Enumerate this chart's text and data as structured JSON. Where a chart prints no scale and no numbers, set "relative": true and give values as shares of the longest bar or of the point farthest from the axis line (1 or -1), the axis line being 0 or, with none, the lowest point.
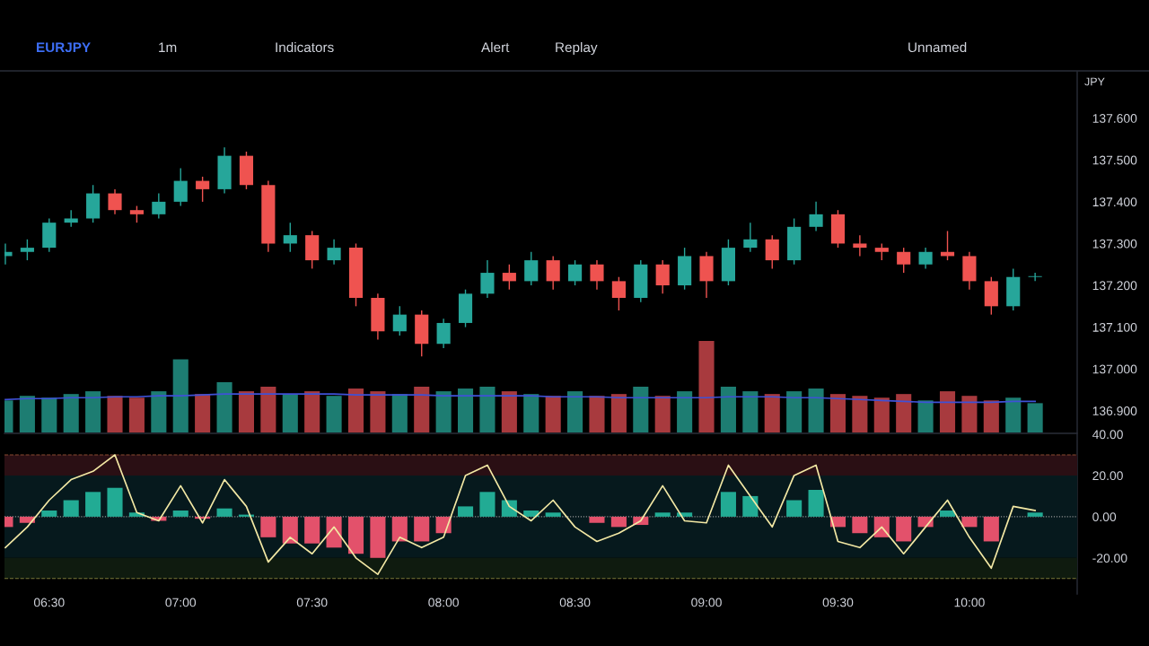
{
  "chart_data": [
    {
      "type": "candlestick",
      "title": "EURJPY",
      "subtitle": "1m",
      "annotations": [
        "Indicators",
        "Alert",
        "Replay",
        "Unnamed",
        "JPY"
      ],
      "x": [
        6.3333,
        6.4167,
        6.5,
        6.5833,
        6.6667,
        6.75,
        6.8333,
        6.9167,
        7.0,
        7.0833,
        7.1667,
        7.25,
        7.3333,
        7.4167,
        7.5,
        7.5833,
        7.6667,
        7.75,
        7.8333,
        7.9167,
        8.0,
        8.0833,
        8.1667,
        8.25,
        8.3333,
        8.4167,
        8.5,
        8.5833,
        8.6667,
        8.75,
        8.8333,
        8.9167,
        9.0,
        9.0833,
        9.1667,
        9.25,
        9.3333,
        9.4167,
        9.5,
        9.5833,
        9.6667,
        9.75,
        9.8333,
        9.9167,
        10.0,
        10.0833,
        10.1667,
        10.25
      ],
      "ohlc": [
        [
          137.27,
          137.3,
          137.25,
          137.28
        ],
        [
          137.28,
          137.31,
          137.26,
          137.29
        ],
        [
          137.29,
          137.36,
          137.28,
          137.35
        ],
        [
          137.35,
          137.38,
          137.34,
          137.36
        ],
        [
          137.36,
          137.44,
          137.35,
          137.42
        ],
        [
          137.42,
          137.43,
          137.37,
          137.38
        ],
        [
          137.38,
          137.39,
          137.35,
          137.37
        ],
        [
          137.37,
          137.42,
          137.36,
          137.4
        ],
        [
          137.4,
          137.48,
          137.39,
          137.45
        ],
        [
          137.45,
          137.46,
          137.4,
          137.43
        ],
        [
          137.43,
          137.53,
          137.42,
          137.51
        ],
        [
          137.51,
          137.52,
          137.43,
          137.44
        ],
        [
          137.44,
          137.45,
          137.28,
          137.3
        ],
        [
          137.3,
          137.35,
          137.28,
          137.32
        ],
        [
          137.32,
          137.33,
          137.24,
          137.26
        ],
        [
          137.26,
          137.31,
          137.25,
          137.29
        ],
        [
          137.29,
          137.3,
          137.15,
          137.17
        ],
        [
          137.17,
          137.18,
          137.07,
          137.09
        ],
        [
          137.09,
          137.15,
          137.08,
          137.13
        ],
        [
          137.13,
          137.14,
          137.03,
          137.06
        ],
        [
          137.06,
          137.12,
          137.05,
          137.11
        ],
        [
          137.11,
          137.19,
          137.1,
          137.18
        ],
        [
          137.18,
          137.26,
          137.17,
          137.23
        ],
        [
          137.23,
          137.25,
          137.19,
          137.21
        ],
        [
          137.21,
          137.28,
          137.2,
          137.26
        ],
        [
          137.26,
          137.27,
          137.19,
          137.21
        ],
        [
          137.21,
          137.26,
          137.2,
          137.25
        ],
        [
          137.25,
          137.26,
          137.19,
          137.21
        ],
        [
          137.21,
          137.22,
          137.14,
          137.17
        ],
        [
          137.17,
          137.26,
          137.16,
          137.25
        ],
        [
          137.25,
          137.26,
          137.18,
          137.2
        ],
        [
          137.2,
          137.29,
          137.19,
          137.27
        ],
        [
          137.27,
          137.28,
          137.17,
          137.21
        ],
        [
          137.21,
          137.31,
          137.2,
          137.29
        ],
        [
          137.29,
          137.35,
          137.28,
          137.31
        ],
        [
          137.31,
          137.32,
          137.24,
          137.26
        ],
        [
          137.26,
          137.36,
          137.25,
          137.34
        ],
        [
          137.34,
          137.4,
          137.33,
          137.37
        ],
        [
          137.37,
          137.38,
          137.29,
          137.3
        ],
        [
          137.3,
          137.32,
          137.27,
          137.29
        ],
        [
          137.29,
          137.3,
          137.26,
          137.28
        ],
        [
          137.28,
          137.29,
          137.23,
          137.25
        ],
        [
          137.25,
          137.29,
          137.24,
          137.28
        ],
        [
          137.28,
          137.33,
          137.26,
          137.27
        ],
        [
          137.27,
          137.28,
          137.19,
          137.21
        ],
        [
          137.21,
          137.22,
          137.13,
          137.15
        ],
        [
          137.15,
          137.24,
          137.14,
          137.22
        ],
        [
          137.22,
          137.23,
          137.21,
          137.22
        ]
      ],
      "colors": [
        "#26a69a",
        "#26a69a",
        "#26a69a",
        "#26a69a",
        "#26a69a",
        "#ef5350",
        "#ef5350",
        "#26a69a",
        "#26a69a",
        "#ef5350",
        "#26a69a",
        "#ef5350",
        "#ef5350",
        "#26a69a",
        "#ef5350",
        "#26a69a",
        "#ef5350",
        "#ef5350",
        "#26a69a",
        "#ef5350",
        "#26a69a",
        "#26a69a",
        "#26a69a",
        "#ef5350",
        "#26a69a",
        "#ef5350",
        "#26a69a",
        "#ef5350",
        "#ef5350",
        "#26a69a",
        "#ef5350",
        "#26a69a",
        "#ef5350",
        "#26a69a",
        "#26a69a",
        "#ef5350",
        "#26a69a",
        "#26a69a",
        "#ef5350",
        "#ef5350",
        "#ef5350",
        "#ef5350",
        "#26a69a",
        "#ef5350",
        "#ef5350",
        "#ef5350",
        "#26a69a",
        "#26a69a"
      ],
      "xlim": [
        6.33,
        10.41
      ],
      "ylim": [
        136.848,
        137.711
      ],
      "yticks": [
        {
          "value": 136.9,
          "label": "136.900"
        },
        {
          "value": 137.0,
          "label": "137.000"
        },
        {
          "value": 137.1,
          "label": "137.100"
        },
        {
          "value": 137.2,
          "label": "137.200"
        },
        {
          "value": 137.3,
          "label": "137.300"
        },
        {
          "value": 137.4,
          "label": "137.400"
        },
        {
          "value": 137.5,
          "label": "137.500"
        },
        {
          "value": 137.6,
          "label": "137.600"
        }
      ],
      "tick_labels": "y"
    },
    {
      "type": "bar",
      "relative": true,
      "tick_labels": false,
      "x": [
        6.3333,
        6.4167,
        6.5,
        6.5833,
        6.6667,
        6.75,
        6.8333,
        6.9167,
        7.0,
        7.0833,
        7.1667,
        7.25,
        7.3333,
        7.4167,
        7.5,
        7.5833,
        7.6667,
        7.75,
        7.8333,
        7.9167,
        8.0,
        8.0833,
        8.1667,
        8.25,
        8.3333,
        8.4167,
        8.5,
        8.5833,
        8.6667,
        8.75,
        8.8333,
        8.9167,
        9.0,
        9.0833,
        9.1667,
        9.25,
        9.3333,
        9.4167,
        9.5,
        9.5833,
        9.6667,
        9.75,
        9.8333,
        9.9167,
        10.0,
        10.0833,
        10.1667,
        10.25
      ],
      "xlim": [
        6.33,
        10.41
      ],
      "series": [
        {
          "type": "bar",
          "colors": [
            "#1d7d72",
            "#1d7d72",
            "#1d7d72",
            "#1d7d72",
            "#1d7d72",
            "#a83a3e",
            "#a83a3e",
            "#1d7d72",
            "#1d7d72",
            "#a83a3e",
            "#1d7d72",
            "#a83a3e",
            "#a83a3e",
            "#1d7d72",
            "#a83a3e",
            "#1d7d72",
            "#a83a3e",
            "#a83a3e",
            "#1d7d72",
            "#a83a3e",
            "#1d7d72",
            "#1d7d72",
            "#1d7d72",
            "#a83a3e",
            "#1d7d72",
            "#a83a3e",
            "#1d7d72",
            "#a83a3e",
            "#a83a3e",
            "#1d7d72",
            "#a83a3e",
            "#1d7d72",
            "#a83a3e",
            "#1d7d72",
            "#1d7d72",
            "#a83a3e",
            "#1d7d72",
            "#1d7d72",
            "#a83a3e",
            "#a83a3e",
            "#a83a3e",
            "#a83a3e",
            "#1d7d72",
            "#a83a3e",
            "#a83a3e",
            "#a83a3e",
            "#1d7d72",
            "#1d7d72"
          ],
          "values": [
            0.35,
            0.4,
            0.38,
            0.42,
            0.45,
            0.4,
            0.38,
            0.45,
            0.8,
            0.42,
            0.55,
            0.45,
            0.5,
            0.42,
            0.45,
            0.4,
            0.48,
            0.45,
            0.42,
            0.5,
            0.45,
            0.48,
            0.5,
            0.45,
            0.42,
            0.4,
            0.45,
            0.4,
            0.42,
            0.5,
            0.4,
            0.45,
            1.0,
            0.5,
            0.45,
            0.42,
            0.45,
            0.48,
            0.42,
            0.4,
            0.38,
            0.42,
            0.35,
            0.45,
            0.4,
            0.35,
            0.38,
            0.32
          ]
        },
        {
          "type": "line",
          "color": "#3f51d6",
          "values": [
            0.36,
            0.37,
            0.37,
            0.38,
            0.38,
            0.39,
            0.39,
            0.4,
            0.4,
            0.41,
            0.42,
            0.42,
            0.42,
            0.42,
            0.42,
            0.42,
            0.41,
            0.41,
            0.41,
            0.41,
            0.4,
            0.4,
            0.4,
            0.4,
            0.4,
            0.39,
            0.39,
            0.39,
            0.38,
            0.38,
            0.38,
            0.38,
            0.38,
            0.39,
            0.39,
            0.39,
            0.38,
            0.38,
            0.37,
            0.36,
            0.35,
            0.34,
            0.33,
            0.33,
            0.33,
            0.33,
            0.34,
            0.34
          ]
        }
      ]
    },
    {
      "type": "bar",
      "x": [
        6.3333,
        6.4167,
        6.5,
        6.5833,
        6.6667,
        6.75,
        6.8333,
        6.9167,
        7.0,
        7.0833,
        7.1667,
        7.25,
        7.3333,
        7.4167,
        7.5,
        7.5833,
        7.6667,
        7.75,
        7.8333,
        7.9167,
        8.0,
        8.0833,
        8.1667,
        8.25,
        8.3333,
        8.4167,
        8.5,
        8.5833,
        8.6667,
        8.75,
        8.8333,
        8.9167,
        9.0,
        9.0833,
        9.1667,
        9.25,
        9.3333,
        9.4167,
        9.5,
        9.5833,
        9.6667,
        9.75,
        9.8333,
        9.9167,
        10.0,
        10.0833,
        10.1667,
        10.25
      ],
      "series": [
        {
          "type": "bar",
          "colors": [
            "#e3516b",
            "#e3516b",
            "#22ab94",
            "#22ab94",
            "#22ab94",
            "#22ab94",
            "#22ab94",
            "#e3516b",
            "#22ab94",
            "#e3516b",
            "#22ab94",
            "#22ab94",
            "#e3516b",
            "#e3516b",
            "#e3516b",
            "#e3516b",
            "#e3516b",
            "#e3516b",
            "#e3516b",
            "#e3516b",
            "#e3516b",
            "#22ab94",
            "#22ab94",
            "#22ab94",
            "#22ab94",
            "#22ab94",
            "#22ab94",
            "#e3516b",
            "#e3516b",
            "#e3516b",
            "#22ab94",
            "#22ab94",
            "#22ab94",
            "#22ab94",
            "#22ab94",
            "#22ab94",
            "#22ab94",
            "#22ab94",
            "#e3516b",
            "#e3516b",
            "#e3516b",
            "#e3516b",
            "#e3516b",
            "#22ab94",
            "#e3516b",
            "#e3516b",
            "#22ab94",
            "#22ab94"
          ],
          "values": [
            -5,
            -3,
            3,
            8,
            12,
            14,
            2,
            -2,
            3,
            -1,
            4,
            1,
            -10,
            -13,
            -13,
            -15,
            -18,
            -20,
            -12,
            -12,
            -8,
            5,
            12,
            8,
            3,
            2,
            0,
            -3,
            -5,
            -4,
            2,
            2,
            0,
            12,
            10,
            0,
            8,
            13,
            -5,
            -8,
            -10,
            -12,
            -5,
            3,
            -5,
            -12,
            0,
            2
          ]
        },
        {
          "type": "line",
          "color": "#f3e8a4",
          "values": [
            -15,
            -5,
            8,
            18,
            22,
            30,
            2,
            -2,
            15,
            -3,
            18,
            5,
            -22,
            -10,
            -18,
            -5,
            -20,
            -28,
            -10,
            -15,
            -10,
            20,
            25,
            5,
            -2,
            8,
            -5,
            -12,
            -8,
            -2,
            15,
            -2,
            -3,
            25,
            10,
            -5,
            20,
            25,
            -12,
            -15,
            -5,
            -18,
            -5,
            8,
            -10,
            -25,
            5,
            3
          ]
        }
      ],
      "bands": [
        {
          "axis": "y",
          "from": 20,
          "to": 30,
          "color": "#2a0f14"
        },
        {
          "axis": "y",
          "from": -20,
          "to": 20,
          "color": "#06191d"
        },
        {
          "axis": "y",
          "from": -30,
          "to": -20,
          "color": "#0f1b0f"
        }
      ],
      "ref_lines": [
        {
          "axis": "y",
          "value": 30,
          "color": "#8a4a30",
          "line_style": "dashed"
        },
        {
          "axis": "y",
          "value": -30,
          "color": "#7a7a3a",
          "line_style": "dashed"
        },
        {
          "axis": "y",
          "value": 0,
          "color": "#9a9a9a",
          "line_style": "dotted"
        }
      ],
      "xlim": [
        6.33,
        10.41
      ],
      "ylim": [
        -37.5,
        40
      ],
      "xticks": [
        {
          "value": 6.5,
          "label": "06:30"
        },
        {
          "value": 7,
          "label": "07:00"
        },
        {
          "value": 7.5,
          "label": "07:30"
        },
        {
          "value": 8,
          "label": "08:00"
        },
        {
          "value": 8.5,
          "label": "08:30"
        },
        {
          "value": 9,
          "label": "09:00"
        },
        {
          "value": 9.5,
          "label": "09:30"
        },
        {
          "value": 10,
          "label": "10:00"
        }
      ],
      "yticks": [
        {
          "value": 40,
          "label": "40.00"
        },
        {
          "value": 20,
          "label": "20.00"
        },
        {
          "value": 0,
          "label": "0.00"
        },
        {
          "value": -20,
          "label": "-20.00"
        }
      ]
    }
  ]
}
